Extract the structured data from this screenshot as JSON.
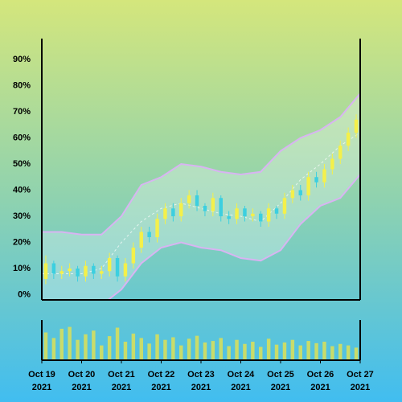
{
  "chart_data": {
    "type": "candlestick",
    "x": [
      0.1,
      0.3,
      0.5,
      0.7,
      0.9,
      1.1,
      1.3,
      1.5,
      1.7,
      1.9,
      2.1,
      2.3,
      2.5,
      2.7,
      2.9,
      3.1,
      3.3,
      3.5,
      3.7,
      3.9,
      4.1,
      4.3,
      4.5,
      4.7,
      4.9,
      5.1,
      5.3,
      5.5,
      5.7,
      5.9,
      6.1,
      6.3,
      6.5,
      6.7,
      6.9,
      7.1,
      7.3,
      7.5,
      7.7,
      7.9
    ],
    "open": [
      6,
      12,
      8,
      9,
      10,
      7,
      11,
      8,
      9,
      14,
      7,
      12,
      18,
      24,
      22,
      29,
      33,
      30,
      35,
      38,
      34,
      32,
      37,
      30,
      29,
      33,
      30,
      31,
      28,
      33,
      31,
      37,
      40,
      38,
      45,
      43,
      48,
      52,
      57,
      62
    ],
    "close": [
      12,
      8,
      9,
      10,
      7,
      11,
      8,
      9,
      14,
      7,
      12,
      18,
      24,
      22,
      29,
      33,
      30,
      35,
      38,
      34,
      32,
      37,
      30,
      29,
      33,
      30,
      31,
      28,
      33,
      31,
      37,
      40,
      38,
      45,
      43,
      48,
      52,
      57,
      62,
      67
    ],
    "high": [
      15,
      13,
      11,
      12,
      11,
      13,
      12,
      11,
      16,
      15,
      14,
      20,
      26,
      26,
      31,
      35,
      35,
      37,
      40,
      40,
      35,
      39,
      38,
      32,
      35,
      34,
      33,
      32,
      35,
      34,
      39,
      42,
      42,
      47,
      47,
      50,
      54,
      59,
      64,
      69
    ],
    "low": [
      4,
      6,
      6,
      7,
      5,
      5,
      6,
      6,
      7,
      5,
      5,
      10,
      16,
      20,
      20,
      27,
      28,
      28,
      33,
      32,
      30,
      30,
      28,
      27,
      27,
      28,
      28,
      26,
      26,
      29,
      29,
      35,
      36,
      36,
      41,
      41,
      46,
      50,
      55,
      60
    ],
    "up_color": "#f4f04a",
    "down_color": "#3ccfe0",
    "bands": {
      "x": [
        0,
        0.5,
        1,
        1.5,
        2,
        2.5,
        3,
        3.5,
        4,
        4.5,
        5,
        5.5,
        6,
        6.5,
        7,
        7.5,
        8
      ],
      "upper": [
        24,
        24,
        23,
        23,
        30,
        42,
        45,
        50,
        49,
        47,
        46,
        47,
        55,
        60,
        63,
        68,
        77
      ],
      "middle": [
        8,
        8,
        8,
        10,
        20,
        28,
        33,
        35,
        33,
        31,
        30,
        28,
        35,
        44,
        50,
        57,
        62
      ],
      "lower": [
        -6,
        -7,
        -8,
        -4,
        2,
        12,
        18,
        20,
        18,
        17,
        14,
        13,
        17,
        27,
        34,
        37,
        46
      ],
      "line_color": "#d8b4f2",
      "fill_color": "#ffffff"
    },
    "ylim": [
      -2,
      98
    ],
    "yticks": [
      {
        "value": 0,
        "label": "0%"
      },
      {
        "value": 10,
        "label": "10%"
      },
      {
        "value": 20,
        "label": "20%"
      },
      {
        "value": 30,
        "label": "30%"
      },
      {
        "value": 40,
        "label": "40%"
      },
      {
        "value": 50,
        "label": "50%"
      },
      {
        "value": 60,
        "label": "60%"
      },
      {
        "value": 70,
        "label": "70%"
      },
      {
        "value": 80,
        "label": "80%"
      },
      {
        "value": 90,
        "label": "90%"
      }
    ],
    "xlim": [
      0,
      8
    ],
    "xticks": [
      {
        "value": 0,
        "label": "Oct 19",
        "year": "2021"
      },
      {
        "value": 1,
        "label": "Oct 20",
        "year": "2021"
      },
      {
        "value": 2,
        "label": "Oct 21",
        "year": "2021"
      },
      {
        "value": 3,
        "label": "Oct 22",
        "year": "2021"
      },
      {
        "value": 4,
        "label": "Oct 23",
        "year": "2021"
      },
      {
        "value": 5,
        "label": "Oct 24",
        "year": "2021"
      },
      {
        "value": 6,
        "label": "Oct 25",
        "year": "2021"
      },
      {
        "value": 7,
        "label": "Oct 26",
        "year": "2021"
      },
      {
        "value": 8,
        "label": "Oct 27",
        "year": "2021"
      }
    ],
    "volume": {
      "values": [
        75,
        60,
        85,
        90,
        55,
        70,
        80,
        40,
        65,
        88,
        50,
        72,
        60,
        45,
        70,
        55,
        62,
        40,
        58,
        66,
        48,
        52,
        60,
        38,
        55,
        44,
        50,
        36,
        58,
        42,
        48,
        55,
        40,
        52,
        46,
        50,
        38,
        44,
        40,
        34
      ],
      "ylim": [
        0,
        100
      ],
      "color": "#c9dc6a"
    }
  }
}
